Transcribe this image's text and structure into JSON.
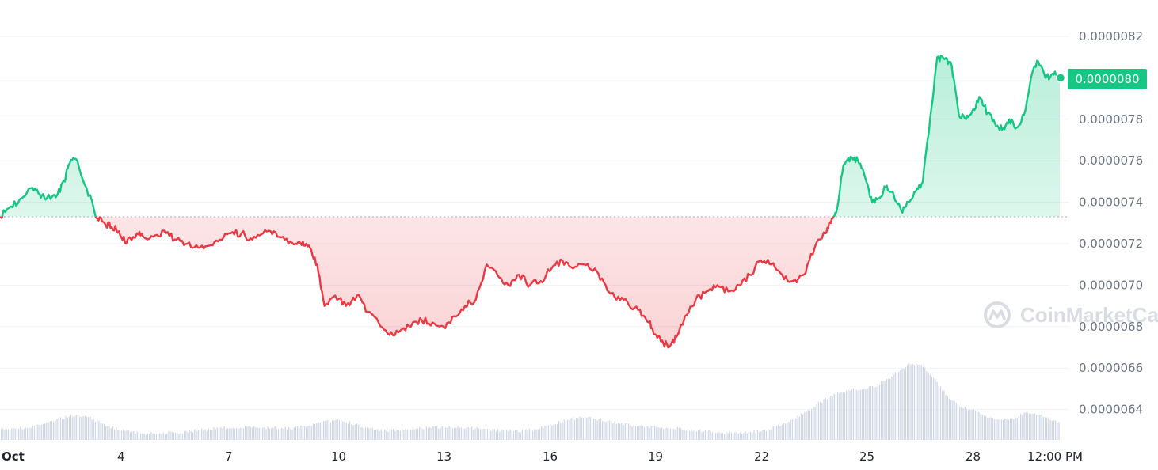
{
  "colors": {
    "up": "#16c784",
    "down": "#ea3943",
    "grid": "#eff2f5",
    "baseline": "#a6b0c3",
    "volume": "#cfd6e4",
    "watermark": "#d9dce3",
    "tick_text": "#6b7280"
  },
  "watermark": {
    "text": "CoinMarketCap",
    "icon": "coinmarketcap-logo-icon"
  },
  "chart_data": {
    "type": "line",
    "title": "",
    "xlabel": "",
    "ylabel": "",
    "ylim": [
      6.23e-06,
      8.39e-06
    ],
    "y_ticks": [
      "0.0000082",
      "0.0000080",
      "0.0000078",
      "0.0000076",
      "0.0000074",
      "0.0000072",
      "0.0000070",
      "0.0000068",
      "0.0000066",
      "0.0000064"
    ],
    "x_ticks": [
      "Oct",
      "4",
      "7",
      "10",
      "13",
      "16",
      "19",
      "22",
      "25",
      "28",
      "12:00 PM"
    ],
    "baseline": 7.33e-06,
    "current_price": "0.0000080",
    "grid": true,
    "series": [
      {
        "day": [
          1.0,
          1.3,
          1.6,
          1.9,
          2.1,
          2.3,
          2.6,
          2.8,
          2.9,
          3.1,
          3.4,
          3.7,
          3.9,
          4.1,
          4.3,
          4.5,
          4.8,
          5.0,
          5.3,
          5.6,
          5.9,
          6.2,
          6.5,
          6.8,
          7.1,
          7.4,
          7.7,
          8.0,
          8.3,
          8.6,
          8.9,
          9.2,
          9.4,
          9.6,
          9.8,
          10.0,
          10.3,
          10.6,
          10.9,
          11.2,
          11.5,
          11.8,
          12.1,
          12.4,
          12.7,
          13.0,
          13.3,
          13.6,
          13.9,
          14.2,
          14.5,
          14.8,
          15.1,
          15.4,
          15.7,
          16.0,
          16.3,
          16.6,
          16.9,
          17.2,
          17.5,
          17.8,
          18.1,
          18.4,
          18.7,
          19.0,
          19.2,
          19.4,
          19.6,
          19.8,
          20.0,
          20.3,
          20.6,
          20.9,
          21.2,
          21.5,
          21.8,
          22.1,
          22.4,
          22.7,
          23.0,
          23.3,
          23.6,
          23.9,
          24.05,
          24.2,
          24.4,
          24.6,
          24.8,
          25.0,
          25.2,
          25.4,
          25.6,
          25.8,
          26.0,
          26.2,
          26.4,
          26.6,
          26.8,
          27.0,
          27.2,
          27.4,
          27.6,
          27.8,
          28.0,
          28.2,
          28.4,
          28.6,
          28.8,
          29.0,
          29.2,
          29.4,
          29.6,
          29.8,
          30.0,
          30.2,
          30.4
        ],
        "y": [
          7.33e-06,
          7.38e-06,
          7.42e-06,
          7.47e-06,
          7.44e-06,
          7.42e-06,
          7.44e-06,
          7.5e-06,
          7.58e-06,
          7.61e-06,
          7.47e-06,
          7.32e-06,
          7.3e-06,
          7.28e-06,
          7.26e-06,
          7.2e-06,
          7.25e-06,
          7.23e-06,
          7.24e-06,
          7.25e-06,
          7.22e-06,
          7.2e-06,
          7.18e-06,
          7.19e-06,
          7.22e-06,
          7.25e-06,
          7.25e-06,
          7.22e-06,
          7.25e-06,
          7.26e-06,
          7.22e-06,
          7.2e-06,
          7.21e-06,
          7.18e-06,
          7.1e-06,
          6.9e-06,
          6.95e-06,
          6.9e-06,
          6.95e-06,
          6.87e-06,
          6.82e-06,
          6.76e-06,
          6.78e-06,
          6.8e-06,
          6.83e-06,
          6.82e-06,
          6.8e-06,
          6.85e-06,
          6.9e-06,
          6.93e-06,
          7.1e-06,
          7.05e-06,
          7e-06,
          7.05e-06,
          7e-06,
          7.02e-06,
          7.08e-06,
          7.12e-06,
          7.08e-06,
          7.1e-06,
          7.08e-06,
          7e-06,
          6.93e-06,
          6.92e-06,
          6.88e-06,
          6.82e-06,
          6.76e-06,
          6.72e-06,
          6.71e-06,
          6.76e-06,
          6.85e-06,
          6.93e-06,
          6.97e-06,
          7e-06,
          6.97e-06,
          7e-06,
          7.05e-06,
          7.12e-06,
          7.1e-06,
          7.05e-06,
          7.02e-06,
          7.05e-06,
          7.18e-06,
          7.25e-06,
          7.3e-06,
          7.35e-06,
          7.58e-06,
          7.62e-06,
          7.6e-06,
          7.52e-06,
          7.4e-06,
          7.42e-06,
          7.48e-06,
          7.43e-06,
          7.36e-06,
          7.4e-06,
          7.45e-06,
          7.5e-06,
          7.8e-06,
          8.1e-06,
          8.09e-06,
          8.06e-06,
          7.82e-06,
          7.8e-06,
          7.85e-06,
          7.9e-06,
          7.83e-06,
          7.78e-06,
          7.75e-06,
          7.8e-06,
          7.76e-06,
          7.82e-06,
          8e-06,
          8.08e-06,
          8e-06,
          8.02e-06,
          8e-06,
          7.95e-06,
          8e-06
        ]
      }
    ]
  }
}
